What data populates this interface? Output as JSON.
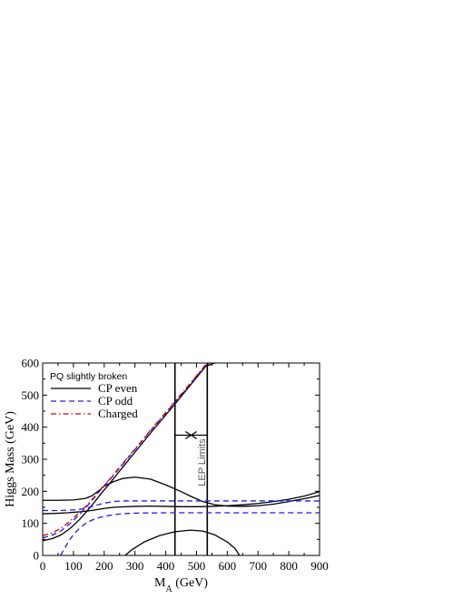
{
  "chart_data": {
    "type": "line",
    "xlabel": "M",
    "xlabel_sub": "A",
    "xlabel_unit": "(GeV)",
    "ylabel": "Higgs Mass (GeV)",
    "xlim": [
      0,
      900
    ],
    "ylim": [
      0,
      600
    ],
    "xticks": [
      0,
      100,
      200,
      300,
      400,
      500,
      600,
      700,
      800,
      900
    ],
    "yticks": [
      0,
      100,
      200,
      300,
      400,
      500,
      600
    ],
    "grid": false,
    "legend_title": "PQ slightly broken",
    "legend_position": "top-left",
    "series": [
      {
        "name": "CP even",
        "style": "solid",
        "color": "#000000",
        "curves": [
          {
            "x": [
              0,
              30,
              60,
              90,
              120,
              150,
              170,
              190,
              220,
              260,
              300,
              350,
              400,
              430,
              480,
              530,
              560
            ],
            "y": [
              46,
              52,
              64,
              85,
              112,
              145,
              168,
              193,
              227,
              275,
              322,
              381,
              438,
              472,
              531,
              590,
              600
            ]
          },
          {
            "x": [
              0,
              50,
              100,
              140,
              160,
              180,
              200,
              230,
              260,
              300,
              350,
              400,
              450,
              480,
              520,
              560,
              600,
              650,
              700,
              750,
              800,
              850,
              900
            ],
            "y": [
              172,
              172,
              173,
              178,
              186,
              200,
              216,
              230,
              240,
              244,
              238,
              220,
              199,
              185,
              168,
              158,
              154,
              153,
              155,
              160,
              168,
              177,
              187
            ]
          },
          {
            "x": [
              0,
              40,
              80,
              120,
              150,
              170,
              190,
              210,
              230,
              250,
              300,
              350,
              400,
              450,
              500,
              550,
              600,
              650,
              700,
              750,
              800,
              850,
              900
            ],
            "y": [
              130,
              131,
              133,
              136,
              139,
              142,
              145,
              148,
              150,
              151,
              153,
              154,
              153,
              152,
              152,
              153,
              155,
              158,
              162,
              168,
              175,
              185,
              199
            ]
          },
          {
            "x": [
              268,
              290,
              330,
              380,
              430,
              480,
              520,
              560,
              600,
              625,
              640
            ],
            "y": [
              0,
              18,
              42,
              62,
              74,
              79,
              76,
              64,
              42,
              22,
              0
            ]
          }
        ]
      },
      {
        "name": "CP odd",
        "style": "dashed",
        "color": "#1a1aff",
        "curves": [
          {
            "x": [
              0,
              30,
              60,
              90,
              120,
              150,
              170,
              190,
              220,
              260,
              300,
              350,
              400,
              430,
              480,
              530,
              560
            ],
            "y": [
              55,
              63,
              77,
              100,
              128,
              160,
              183,
              206,
              238,
              284,
              330,
              388,
              444,
              478,
              535,
              593,
              600
            ]
          },
          {
            "x": [
              0,
              50,
              100,
              140,
              160,
              180,
              200,
              230,
              260,
              300,
              400,
              500,
              600,
              700,
              800,
              900
            ],
            "y": [
              140,
              140,
              142,
              146,
              152,
              158,
              163,
              168,
              170,
              170,
              170,
              170,
              170,
              170,
              170,
              170
            ]
          },
          {
            "x": [
              58,
              70,
              85,
              100,
              120,
              140,
              160,
              180,
              200,
              230,
              260,
              300,
              400,
              500,
              600,
              700,
              800,
              900
            ],
            "y": [
              0,
              20,
              45,
              65,
              85,
              100,
              110,
              117,
              122,
              127,
              130,
              132,
              133,
              133,
              133,
              133,
              133,
              133
            ]
          }
        ]
      },
      {
        "name": "Charged",
        "style": "dashdot",
        "color": "#dd0000",
        "curves": [
          {
            "x": [
              0,
              30,
              60,
              90,
              120,
              150,
              170,
              190,
              220,
              260,
              300,
              350,
              400,
              430,
              480,
              530,
              560
            ],
            "y": [
              62,
              70,
              85,
              108,
              134,
              163,
              185,
              208,
              240,
              287,
              332,
              390,
              446,
              480,
              537,
              595,
              600
            ]
          }
        ]
      }
    ],
    "vertical_lines": [
      {
        "x": 430,
        "style": "solid",
        "color": "#000000"
      },
      {
        "x": 535,
        "style": "solid",
        "color": "#000000"
      }
    ],
    "annotations": [
      {
        "text": "LEP Limits",
        "x": 520,
        "y": 290,
        "rotation": -90,
        "color": "#555555"
      }
    ],
    "arrows": [
      {
        "x_from": 430,
        "x_to": 482,
        "y": 375
      },
      {
        "x_from": 535,
        "x_to": 483,
        "y": 375
      }
    ]
  }
}
